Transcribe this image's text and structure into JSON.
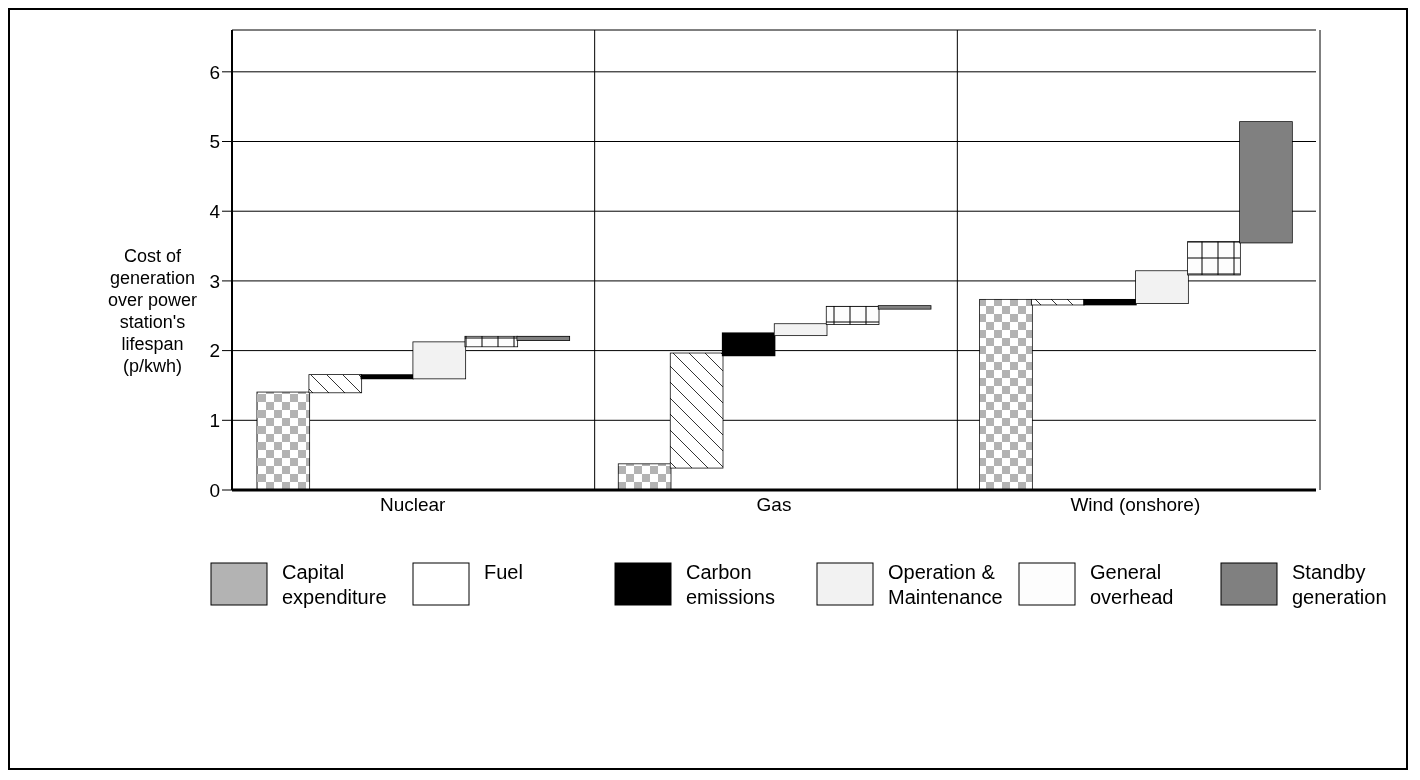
{
  "chart_data": {
    "type": "bar",
    "ylabel": "Cost of generation over power station's lifespan (p/kwh)",
    "categories": [
      "Nuclear",
      "Gas",
      "Wind (onshore)"
    ],
    "series": [
      {
        "name": "Capital expenditure",
        "color": "#b3b3b3",
        "values": [
          1.4,
          0.37,
          2.73
        ],
        "base": [
          0,
          0,
          0
        ]
      },
      {
        "name": "Fuel",
        "color": "#ffffff",
        "values": [
          0.25,
          1.64,
          0.07
        ],
        "base": [
          1.4,
          0.32,
          2.66
        ]
      },
      {
        "name": "Carbon emissions",
        "color": "#000000",
        "values": [
          0.05,
          0.32,
          0.07
        ],
        "base": [
          1.6,
          1.93,
          2.66
        ]
      },
      {
        "name": "Operation & Maintenance",
        "color": "#f2f2f2",
        "values": [
          0.52,
          0.16,
          0.46
        ],
        "base": [
          1.6,
          2.22,
          2.68
        ]
      },
      {
        "name": "General overhead",
        "color": "#fdfdfd",
        "values": [
          0.14,
          0.25,
          0.47
        ],
        "base": [
          2.06,
          2.38,
          3.09
        ]
      },
      {
        "name": "Standby generation",
        "color": "#808080",
        "values": [
          0.05,
          0.04,
          1.73
        ],
        "base": [
          2.15,
          2.6,
          3.55
        ]
      }
    ],
    "ylim": [
      0,
      6.6
    ],
    "yticks": [
      0,
      1,
      2,
      3,
      4,
      5,
      6
    ],
    "grid": true,
    "legend": "bottom"
  }
}
